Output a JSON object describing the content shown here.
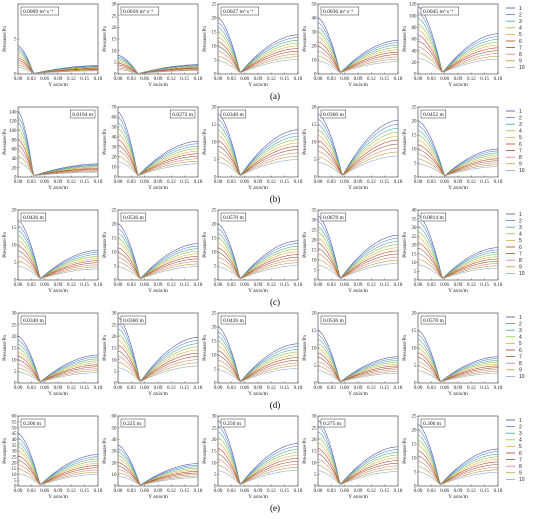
{
  "colors": [
    "#4a4f9a",
    "#5a7ed6",
    "#3fa7a2",
    "#8fbf3a",
    "#d8b23a",
    "#c0392b",
    "#8b5a2b",
    "#e07b7b",
    "#b99a3a",
    "#8fa8c8"
  ],
  "legend_labels": [
    "1",
    "2",
    "3",
    "4",
    "5",
    "6",
    "7",
    "8",
    "9",
    "10"
  ],
  "chart_data": [
    {
      "type": "line",
      "row": "(a)",
      "annotation": "0.0009 m³ s⁻¹",
      "ylim": [
        0,
        10
      ],
      "yticks": [
        0,
        5
      ],
      "peak": 4,
      "center": 0.035,
      "end": 0.3
    },
    {
      "type": "line",
      "row": "(a)",
      "annotation": "0.0018 m³ s⁻¹",
      "ylim": [
        0,
        30
      ],
      "yticks": [
        0,
        5,
        10,
        15,
        20,
        25,
        30
      ],
      "peak": 8,
      "center": 0.045,
      "end": 0.5
    },
    {
      "type": "line",
      "row": "(a)",
      "annotation": "0.0027 m³ s⁻¹",
      "ylim": [
        0,
        25
      ],
      "yticks": [
        0,
        5,
        10,
        15,
        20,
        25
      ],
      "peak": 20,
      "center": 0.05,
      "end": 0.7
    },
    {
      "type": "line",
      "row": "(a)",
      "annotation": "0.0036 m³ s⁻¹",
      "ylim": [
        0,
        50
      ],
      "yticks": [
        0,
        10,
        20,
        30,
        40,
        50
      ],
      "peak": 40,
      "center": 0.05,
      "end": 0.6
    },
    {
      "type": "line",
      "row": "(a)",
      "annotation": "0.0045 m³ s⁻¹",
      "ylim": [
        0,
        120
      ],
      "yticks": [
        0,
        20,
        40,
        60,
        80,
        100,
        120
      ],
      "peak": 115,
      "center": 0.055,
      "end": 0.6
    },
    {
      "type": "line",
      "row": "(b)",
      "annotation": "0.0194 m",
      "ylim": [
        0,
        150
      ],
      "yticks": [
        0,
        20,
        40,
        60,
        80,
        100,
        120,
        140
      ],
      "peak": 140,
      "center": 0.035,
      "end": 0.2
    },
    {
      "type": "line",
      "row": "(b)",
      "annotation": "0.0272 m",
      "ylim": [
        0,
        70
      ],
      "yticks": [
        0,
        10,
        20,
        30,
        40,
        50,
        60,
        70
      ],
      "peak": 65,
      "center": 0.045,
      "end": 0.55
    },
    {
      "type": "line",
      "row": "(b)",
      "annotation": "0.0340 m",
      "ylim": [
        0,
        20
      ],
      "yticks": [
        0,
        5,
        10,
        15,
        20
      ],
      "peak": 18,
      "center": 0.05,
      "end": 0.75
    },
    {
      "type": "line",
      "row": "(b)",
      "annotation": "0.0360 m",
      "ylim": [
        0,
        20
      ],
      "yticks": [
        0,
        5,
        10,
        15,
        20
      ],
      "peak": 18,
      "center": 0.055,
      "end": 0.9
    },
    {
      "type": "line",
      "row": "(b)",
      "annotation": "0.0452 m",
      "ylim": [
        0,
        25
      ],
      "yticks": [
        0,
        5,
        10,
        15,
        20,
        25
      ],
      "peak": 20,
      "center": 0.06,
      "end": 0.5
    },
    {
      "type": "line",
      "row": "(c)",
      "annotation": "0.0426 m",
      "ylim": [
        0,
        20
      ],
      "yticks": [
        0,
        5,
        10,
        15,
        20
      ],
      "peak": 17,
      "center": 0.05,
      "end": 0.5
    },
    {
      "type": "line",
      "row": "(c)",
      "annotation": "0.0536 m",
      "ylim": [
        0,
        25
      ],
      "yticks": [
        0,
        5,
        10,
        15,
        20,
        25
      ],
      "peak": 20,
      "center": 0.05,
      "end": 0.65
    },
    {
      "type": "line",
      "row": "(c)",
      "annotation": "0.0570 m",
      "ylim": [
        0,
        25
      ],
      "yticks": [
        0,
        5,
        10,
        15,
        20,
        25
      ],
      "peak": 20,
      "center": 0.05,
      "end": 0.7
    },
    {
      "type": "line",
      "row": "(c)",
      "annotation": "0.0678 m",
      "ylim": [
        0,
        35
      ],
      "yticks": [
        0,
        5,
        10,
        15,
        20,
        25,
        30,
        35
      ],
      "peak": 32,
      "center": 0.05,
      "end": 0.7
    },
    {
      "type": "line",
      "row": "(c)",
      "annotation": "0.0814 m",
      "ylim": [
        0,
        40
      ],
      "yticks": [
        0,
        5,
        10,
        15,
        20,
        25,
        30,
        35,
        40
      ],
      "peak": 37,
      "center": 0.055,
      "end": 0.5
    },
    {
      "type": "line",
      "row": "(d)",
      "annotation": "0.0340 m",
      "ylim": [
        0,
        30
      ],
      "yticks": [
        0,
        5,
        10,
        15,
        20,
        25,
        30
      ],
      "peak": 20,
      "center": 0.05,
      "end": 0.6
    },
    {
      "type": "line",
      "row": "(d)",
      "annotation": "0.0360 m",
      "ylim": [
        0,
        30
      ],
      "yticks": [
        0,
        5,
        10,
        15,
        20,
        25,
        30
      ],
      "peak": 28,
      "center": 0.05,
      "end": 0.7
    },
    {
      "type": "line",
      "row": "(d)",
      "annotation": "0.0426 m",
      "ylim": [
        0,
        25
      ],
      "yticks": [
        0,
        5,
        10,
        15,
        20,
        25
      ],
      "peak": 20,
      "center": 0.05,
      "end": 0.7
    },
    {
      "type": "line",
      "row": "(d)",
      "annotation": "0.0536 m",
      "ylim": [
        0,
        20
      ],
      "yticks": [
        0,
        5,
        10,
        15,
        20
      ],
      "peak": 15,
      "center": 0.05,
      "end": 0.5
    },
    {
      "type": "line",
      "row": "(d)",
      "annotation": "0.0570 m",
      "ylim": [
        0,
        20
      ],
      "yticks": [
        0,
        5,
        10,
        15,
        20
      ],
      "peak": 15,
      "center": 0.05,
      "end": 0.5
    },
    {
      "type": "line",
      "row": "(e)",
      "annotation": "0.200 m",
      "ylim": [
        0,
        60
      ],
      "yticks": [
        0,
        5,
        10,
        15,
        20,
        25,
        30,
        35,
        40,
        45,
        50,
        55,
        60
      ],
      "peak": 45,
      "center": 0.05,
      "end": 0.6
    },
    {
      "type": "line",
      "row": "(e)",
      "annotation": "0.225 m",
      "ylim": [
        0,
        60
      ],
      "yticks": [
        0,
        10,
        20,
        30,
        40,
        50,
        60
      ],
      "peak": 35,
      "center": 0.05,
      "end": 0.55
    },
    {
      "type": "line",
      "row": "(e)",
      "annotation": "0.250 m",
      "ylim": [
        0,
        30
      ],
      "yticks": [
        0,
        5,
        10,
        15,
        20,
        25,
        30
      ],
      "peak": 28,
      "center": 0.05,
      "end": 0.65
    },
    {
      "type": "line",
      "row": "(e)",
      "annotation": "0.275 m",
      "ylim": [
        0,
        30
      ],
      "yticks": [
        0,
        5,
        10,
        15,
        20,
        25,
        30
      ],
      "peak": 28,
      "center": 0.05,
      "end": 0.6
    },
    {
      "type": "line",
      "row": "(e)",
      "annotation": "0.300 m",
      "ylim": [
        0,
        25
      ],
      "yticks": [
        0,
        5,
        10,
        15,
        20,
        25
      ],
      "peak": 22,
      "center": 0.05,
      "end": 0.6
    }
  ],
  "shared": {
    "xlabel": "Y axis/m",
    "ylabel": "Pressure/Pa",
    "xticks": [
      "0.00",
      "0.03",
      "0.06",
      "0.09",
      "0.12",
      "0.15",
      "0.18"
    ],
    "xlim": [
      0,
      0.18
    ],
    "row_labels": [
      "(a)",
      "(b)",
      "(c)",
      "(d)",
      "(e)"
    ]
  }
}
